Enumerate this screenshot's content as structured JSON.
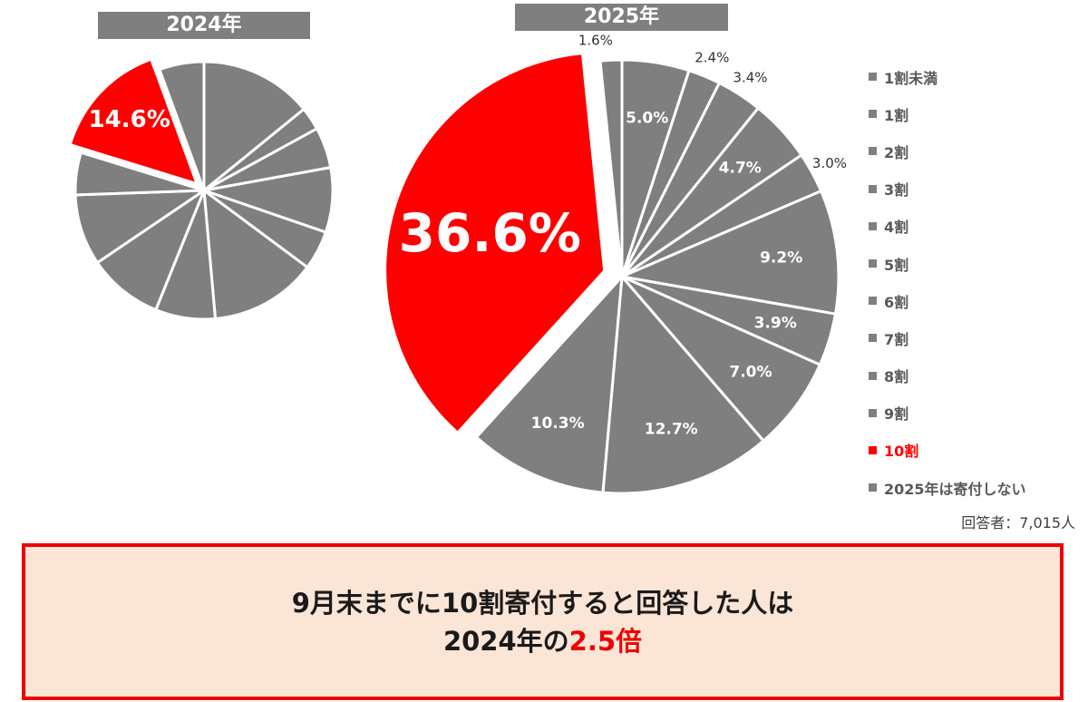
{
  "colors": {
    "slice": "#7f7f7f",
    "highlight": "#ff0000",
    "box_bg": "#fbe5d6",
    "box_border": "#ee0000"
  },
  "chart_data": [
    {
      "type": "pie",
      "title": "2024年",
      "categories": [
        "1割未満",
        "1割",
        "2割",
        "3割",
        "4割",
        "5割",
        "6割",
        "7割",
        "8割",
        "9割",
        "10割",
        "2025年は寄付しない"
      ],
      "values": [
        14.1,
        2.9,
        5.1,
        8.1,
        4.9,
        13.4,
        7.5,
        9.4,
        8.9,
        5.3,
        14.6,
        5.6
      ],
      "labels": [
        "",
        "",
        "",
        "",
        "",
        "",
        "",
        "",
        "",
        "",
        "14.6%",
        ""
      ],
      "highlight": "10割",
      "start_angle": 0,
      "direction": "clockwise"
    },
    {
      "type": "pie",
      "title": "2025年",
      "categories": [
        "1割未満",
        "1割",
        "2割",
        "3割",
        "4割",
        "5割",
        "6割",
        "7割",
        "8割",
        "9割",
        "10割",
        "2025年は寄付しない"
      ],
      "values": [
        5.0,
        2.4,
        3.4,
        4.7,
        3.0,
        9.2,
        3.9,
        7.0,
        12.7,
        10.3,
        36.6,
        1.6
      ],
      "labels": [
        "5.0%",
        "2.4%",
        "3.4%",
        "4.7%",
        "3.0%",
        "9.2%",
        "3.9%",
        "7.0%",
        "12.7%",
        "10.3%",
        "36.6%",
        "1.6%"
      ],
      "highlight": "10割",
      "legend": "right",
      "start_angle": 0,
      "direction": "clockwise"
    }
  ],
  "legend": [
    "1割未満",
    "1割",
    "2割",
    "3割",
    "4割",
    "5割",
    "6割",
    "7割",
    "8割",
    "9割",
    "10割",
    "2025年は寄付しない"
  ],
  "respondents": "回答者：7,015人",
  "summary": {
    "line1": "9月末までに10割寄付すると回答した人は",
    "line2_prefix": "2024年の",
    "line2_highlight": "2.5倍"
  }
}
